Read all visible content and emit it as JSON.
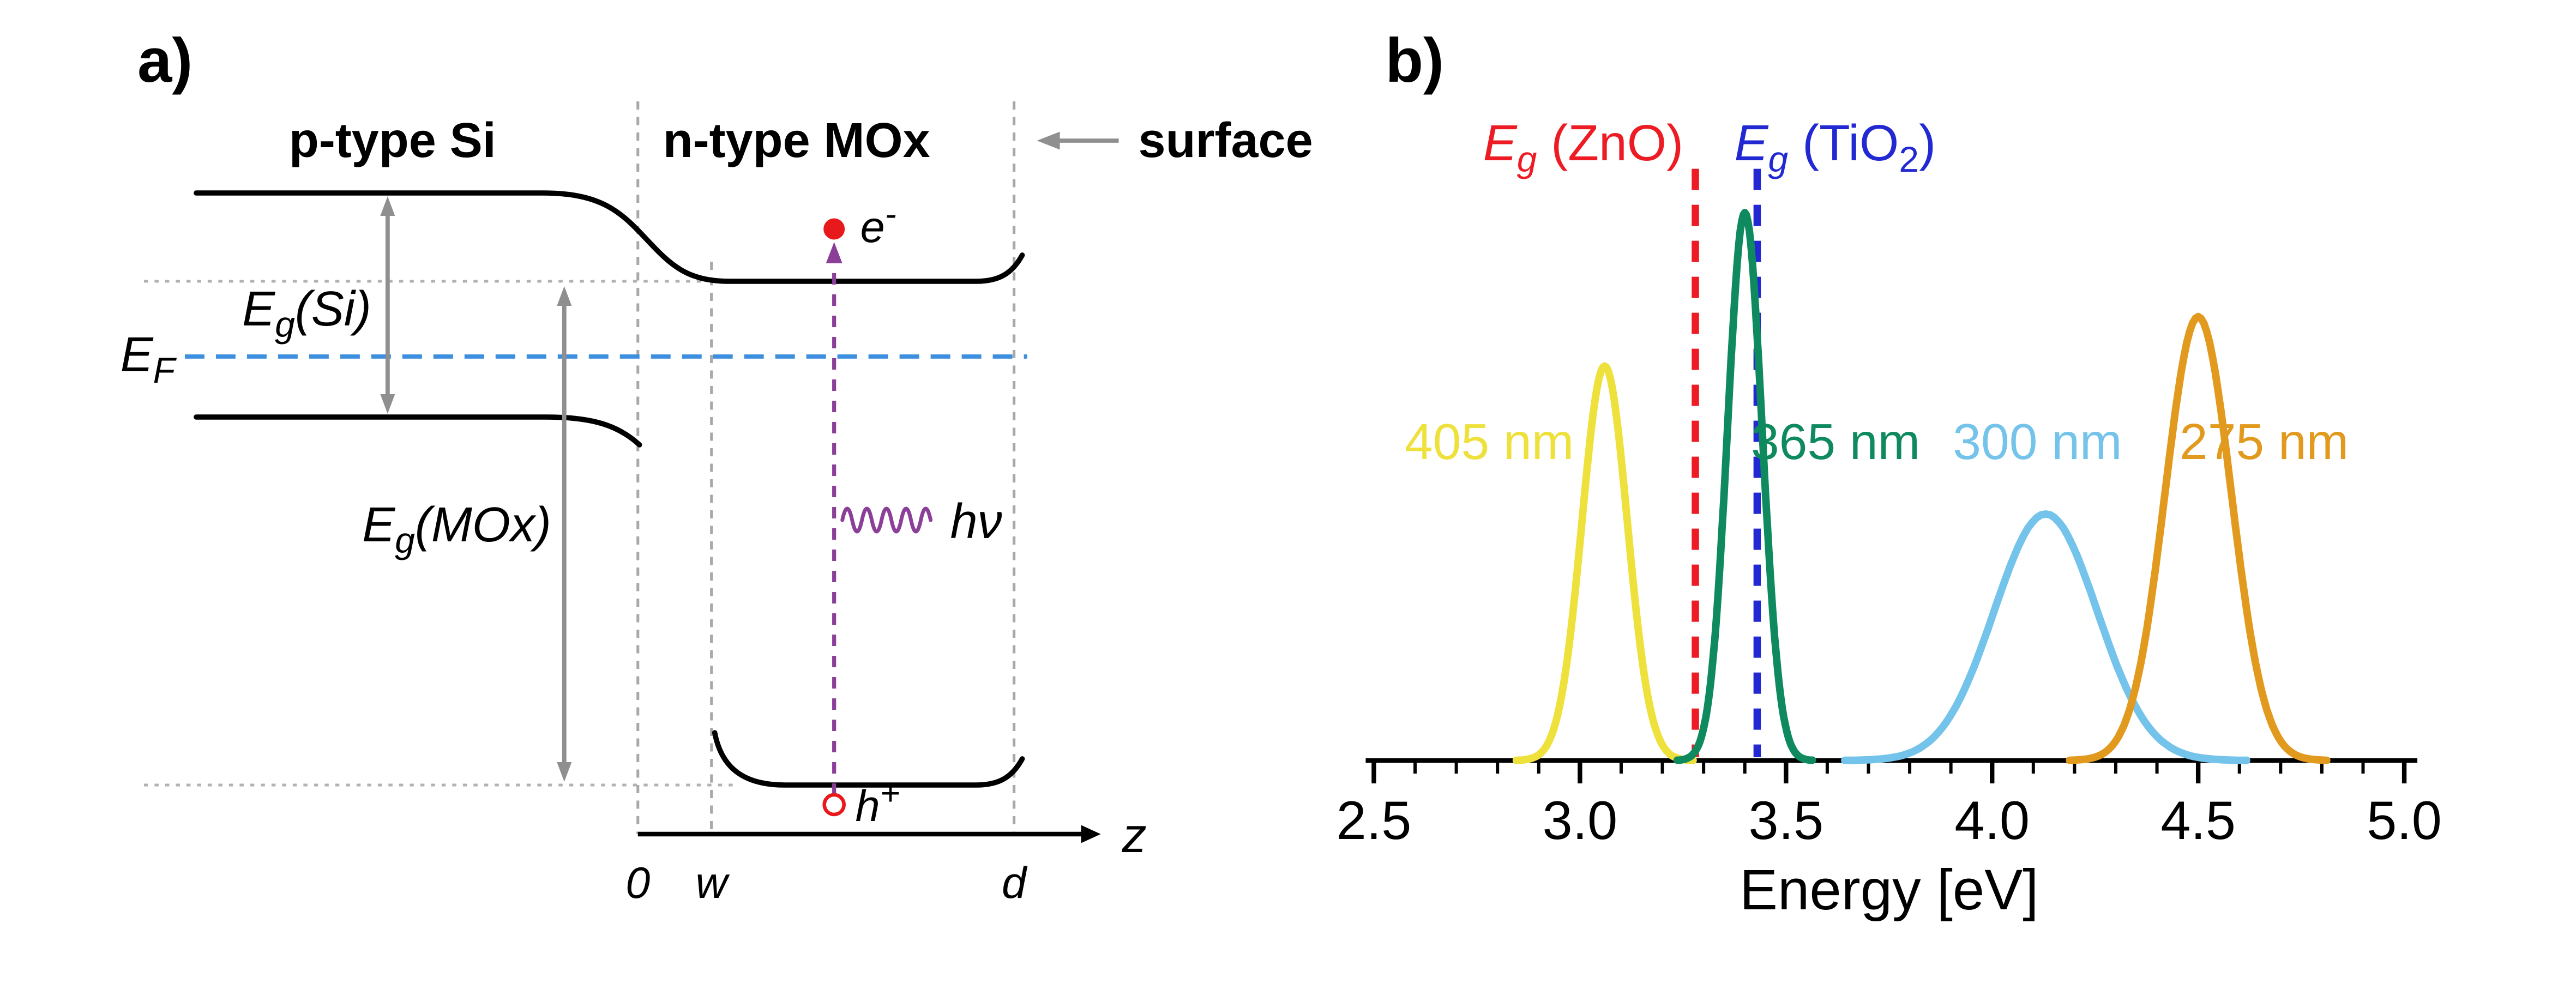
{
  "figure": {
    "panel_a_tag": "a)",
    "panel_b_tag": "b)"
  },
  "panel_a": {
    "region_left_label": "p-type Si",
    "region_right_label": "n-type MOx",
    "surface_label": "surface",
    "eg_si": {
      "sym": "E",
      "sub": "g",
      "rest": "(Si)"
    },
    "eg_mox": {
      "sym": "E",
      "sub": "g",
      "rest": "(MOx)"
    },
    "fermi_level": {
      "sym": "E",
      "sub": "F"
    },
    "electron": {
      "sym": "e",
      "sup": "-"
    },
    "hole": {
      "sym": "h",
      "sup": "+"
    },
    "photon": {
      "sym": "h",
      "rest": "ν"
    },
    "z_axis": {
      "axis_label": "z",
      "origin_label": "0",
      "depletion_label": "w",
      "thickness_label": "d"
    },
    "colors": {
      "bands": "#000000",
      "fermi_level": "#3c8ede",
      "guides": "#909090",
      "photon_transition": "#8b3f98",
      "electron_hole": "#e8191c"
    }
  },
  "chart_data": {
    "type": "line",
    "title": "",
    "xlabel": "Energy [eV]",
    "ylabel": "",
    "xlim": [
      2.5,
      5.0
    ],
    "xticks": [
      2.5,
      3.0,
      3.5,
      4.0,
      4.5,
      5.0
    ],
    "xtick_labels": [
      "2.5",
      "3.0",
      "3.5",
      "4.0",
      "4.5",
      "5.0"
    ],
    "minor_tick_step": 0.1,
    "ylim": [
      0,
      1.15
    ],
    "grid": false,
    "legend_position": "none",
    "series": [
      {
        "name": "405 nm",
        "shape": "gaussian",
        "center_eV": 3.06,
        "sigma_eV": 0.055,
        "height": 0.72,
        "color": "#eee13c",
        "label_x_eV": 2.78,
        "label_y": 0.55
      },
      {
        "name": "365 nm",
        "shape": "gaussian",
        "center_eV": 3.4,
        "sigma_eV": 0.042,
        "height": 1.0,
        "color": "#0e8a5e",
        "label_x_eV": 3.62,
        "label_y": 0.55
      },
      {
        "name": "300 nm",
        "shape": "gaussian",
        "center_eV": 4.13,
        "sigma_eV": 0.125,
        "height": 0.45,
        "color": "#74c3ea",
        "label_x_eV": 4.11,
        "label_y": 0.55
      },
      {
        "name": "275 nm",
        "shape": "gaussian",
        "center_eV": 4.5,
        "sigma_eV": 0.08,
        "height": 0.81,
        "color": "#e29a1e",
        "label_x_eV": 4.66,
        "label_y": 0.55
      }
    ],
    "vlines": [
      {
        "name": "Eg ZnO",
        "x_eV": 3.28,
        "top": 1.08,
        "color": "#ed1c24"
      },
      {
        "name": "Eg TiO2",
        "x_eV": 3.43,
        "top": 1.08,
        "color": "#2228d2"
      }
    ],
    "vline_labels": {
      "zno": {
        "sym": "E",
        "sub": "g",
        "rest": " (ZnO)"
      },
      "tio2": {
        "sym": "E",
        "sub": "g",
        "rest": " (TiO",
        "sub2": "2",
        "rest2": ")"
      }
    }
  }
}
